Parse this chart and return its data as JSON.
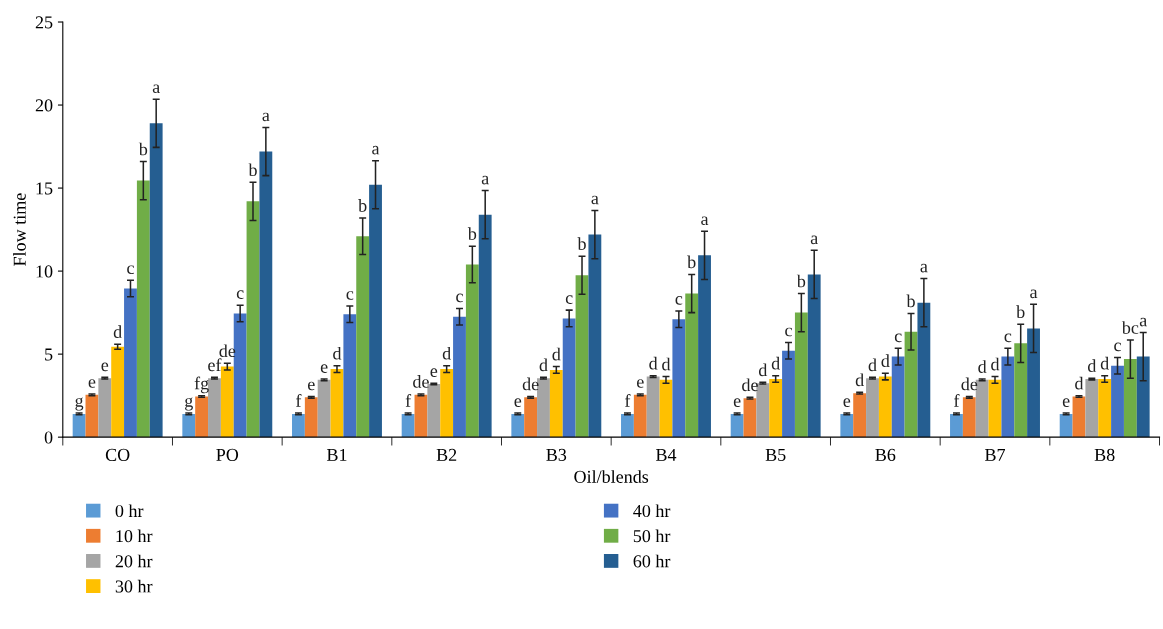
{
  "chart_data": {
    "type": "bar",
    "xlabel": "Oil/blends",
    "ylabel": "Flow time",
    "categories": [
      "CO",
      "PO",
      "B1",
      "B2",
      "B3",
      "B4",
      "B5",
      "B6",
      "B7",
      "B8"
    ],
    "ylim": [
      0,
      25
    ],
    "yticks": [
      0,
      5,
      10,
      15,
      20,
      25
    ],
    "grid": false,
    "legend": "bottom",
    "series": [
      {
        "name": "0 hr",
        "color": "#5b9bd5",
        "values": [
          1.4,
          1.4,
          1.4,
          1.4,
          1.4,
          1.4,
          1.4,
          1.4,
          1.4,
          1.4
        ],
        "errors": [
          0.05,
          0.05,
          0.05,
          0.05,
          0.05,
          0.05,
          0.05,
          0.05,
          0.05,
          0.05
        ],
        "value_labels": [
          "g",
          "g",
          "f",
          "f",
          "e",
          "f",
          "e",
          "e",
          "f",
          "e"
        ]
      },
      {
        "name": "10 hr",
        "color": "#ed7d31",
        "values": [
          2.55,
          2.45,
          2.4,
          2.55,
          2.4,
          2.55,
          2.35,
          2.65,
          2.4,
          2.45
        ],
        "errors": [
          0.05,
          0.05,
          0.05,
          0.05,
          0.05,
          0.05,
          0.05,
          0.05,
          0.05,
          0.05
        ],
        "value_labels": [
          "e",
          "fg",
          "e",
          "de",
          "de",
          "e",
          "de",
          "d",
          "de",
          "d"
        ]
      },
      {
        "name": "20 hr",
        "color": "#a5a5a5",
        "values": [
          3.55,
          3.55,
          3.45,
          3.2,
          3.55,
          3.65,
          3.25,
          3.55,
          3.45,
          3.5
        ],
        "errors": [
          0.05,
          0.05,
          0.05,
          0.05,
          0.05,
          0.05,
          0.05,
          0.05,
          0.05,
          0.05
        ],
        "value_labels": [
          "e",
          "ef",
          "e",
          "e",
          "d",
          "d",
          "d",
          "d",
          "d",
          "d"
        ]
      },
      {
        "name": "30 hr",
        "color": "#ffc000",
        "values": [
          5.45,
          4.25,
          4.1,
          4.1,
          4.05,
          3.45,
          3.5,
          3.65,
          3.45,
          3.5
        ],
        "errors": [
          0.15,
          0.2,
          0.2,
          0.2,
          0.2,
          0.2,
          0.2,
          0.2,
          0.2,
          0.2
        ],
        "value_labels": [
          "d",
          "de",
          "d",
          "d",
          "d",
          "d",
          "d",
          "d",
          "d",
          "d"
        ]
      },
      {
        "name": "40 hr",
        "color": "#4472c4",
        "values": [
          8.95,
          7.45,
          7.4,
          7.25,
          7.15,
          7.1,
          5.2,
          4.85,
          4.85,
          4.3
        ],
        "errors": [
          0.5,
          0.5,
          0.5,
          0.5,
          0.5,
          0.5,
          0.5,
          0.5,
          0.5,
          0.5
        ],
        "value_labels": [
          "c",
          "c",
          "c",
          "c",
          "c",
          "c",
          "c",
          "c",
          "c",
          "c"
        ]
      },
      {
        "name": "50 hr",
        "color": "#70ad47",
        "values": [
          15.45,
          14.2,
          12.1,
          10.4,
          9.75,
          8.65,
          7.5,
          6.35,
          5.65,
          4.7
        ],
        "errors": [
          1.15,
          1.15,
          1.1,
          1.1,
          1.15,
          1.15,
          1.15,
          1.1,
          1.15,
          1.15
        ],
        "value_labels": [
          "b",
          "b",
          "b",
          "b",
          "b",
          "b",
          "b",
          "b",
          "b",
          "bc"
        ]
      },
      {
        "name": "60 hr",
        "color": "#255e91",
        "values": [
          18.9,
          17.2,
          15.2,
          13.4,
          12.2,
          10.95,
          9.8,
          8.1,
          6.55,
          4.85
        ],
        "errors": [
          1.45,
          1.45,
          1.45,
          1.45,
          1.45,
          1.45,
          1.45,
          1.45,
          1.45,
          1.45
        ],
        "value_labels": [
          "a",
          "a",
          "a",
          "a",
          "a",
          "a",
          "a",
          "a",
          "a",
          "a"
        ]
      }
    ]
  }
}
